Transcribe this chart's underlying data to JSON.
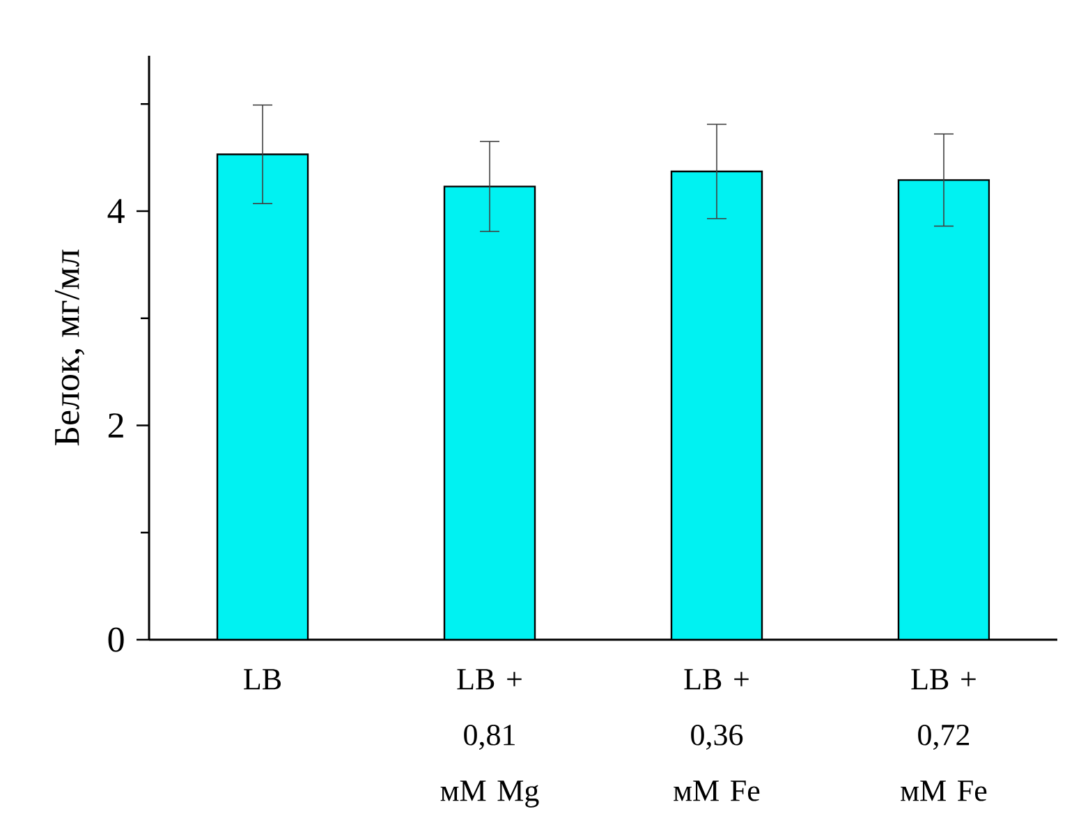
{
  "chart_data": {
    "type": "bar",
    "ylabel": "Белок, мг/мл",
    "categories": [
      "LB",
      "LB + 0,81 мМ Mg",
      "LB + 0,36 мМ Fe",
      "LB + 0,72 мМ Fe"
    ],
    "values": [
      4.53,
      4.23,
      4.37,
      4.29
    ],
    "errors": [
      0.46,
      0.42,
      0.44,
      0.43
    ],
    "color": "#00f2f2",
    "ylim": [
      0,
      5.45
    ],
    "yticks": [
      0,
      {
        "value": 1,
        "label": null
      },
      2,
      {
        "value": 3,
        "label": null
      },
      4,
      {
        "value": 5,
        "label": null
      }
    ]
  }
}
